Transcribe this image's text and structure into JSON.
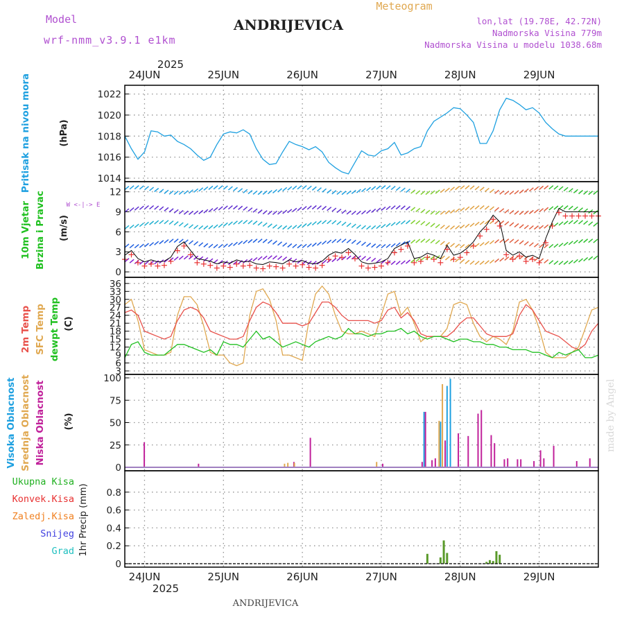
{
  "header": {
    "model_label": "Model",
    "model_name": "wrf-nmm_v3.9.1 e1km",
    "title": "ANDRIJEVICA",
    "subtitle": "Meteogram",
    "lonlat": "lon,lat (19.78E, 42.72N)",
    "altitude": "Nadmorska Visina 779m",
    "model_altitude": "Nadmorska Visina u modelu 1038.68m",
    "year": "2025",
    "footer_title": "ANDRIJEVICA",
    "credit": "made by Angel"
  },
  "colors": {
    "pressure": "#1ea0e0",
    "temp2m": "#e8504a",
    "sfctemp": "#e0a850",
    "dewpoint": "#20c020",
    "high_cloud": "#1ea0e0",
    "mid_cloud": "#e0a850",
    "low_cloud": "#c0209a",
    "total_precip": "#20b020",
    "conv_precip": "#e83030",
    "frz_precip": "#f08020",
    "snow": "#4040e0",
    "hail": "#20c0c0",
    "grid": "#909090"
  },
  "chart_data": [
    {
      "type": "line",
      "panel": "pressure",
      "ylabel_colored": "Pritisak na nivou mora",
      "unit": "(hPa)",
      "ylim": [
        1014,
        1022.5
      ],
      "yticks": [
        1014,
        1016,
        1018,
        1020,
        1022
      ],
      "xlim": [
        0,
        144
      ],
      "xticks": [
        {
          "t": 6,
          "label": "24JUN"
        },
        {
          "t": 30,
          "label": "25JUN"
        },
        {
          "t": 54,
          "label": "26JUN"
        },
        {
          "t": 78,
          "label": "27JUN"
        },
        {
          "t": 102,
          "label": "28JUN"
        },
        {
          "t": 126,
          "label": "29JUN"
        }
      ],
      "grid": true,
      "series": [
        {
          "key": "pressure",
          "t": [
            0,
            2,
            4,
            6,
            8,
            10,
            12,
            14,
            16,
            18,
            20,
            22,
            24,
            26,
            28,
            30,
            32,
            34,
            36,
            38,
            40,
            42,
            44,
            46,
            48,
            50,
            52,
            54,
            56,
            58,
            60,
            62,
            64,
            66,
            68,
            70,
            72,
            74,
            76,
            78,
            80,
            82,
            84,
            86,
            88,
            90,
            92,
            94,
            96,
            98,
            100,
            102,
            104,
            106,
            108,
            110,
            112,
            114,
            116,
            118,
            120,
            122,
            124,
            126,
            128,
            130,
            132,
            134,
            136,
            138,
            140,
            142,
            144
          ],
          "values": [
            1018.0,
            1016.8,
            1015.8,
            1016.5,
            1018.5,
            1018.4,
            1018.0,
            1018.1,
            1017.5,
            1017.2,
            1016.8,
            1016.2,
            1015.7,
            1016.0,
            1017.2,
            1018.2,
            1018.4,
            1018.3,
            1018.6,
            1018.2,
            1016.8,
            1015.8,
            1015.3,
            1015.4,
            1016.5,
            1017.5,
            1017.2,
            1017.0,
            1016.7,
            1017.0,
            1016.5,
            1015.5,
            1015.0,
            1014.6,
            1014.4,
            1015.5,
            1016.6,
            1016.2,
            1016.1,
            1016.6,
            1016.8,
            1017.4,
            1016.2,
            1016.4,
            1016.8,
            1017.0,
            1018.5,
            1019.4,
            1019.8,
            1020.2,
            1020.7,
            1020.6,
            1020.0,
            1019.3,
            1017.3,
            1017.3,
            1018.5,
            1020.5,
            1021.6,
            1021.4,
            1021.0,
            1020.5,
            1020.7,
            1020.2,
            1019.3,
            1018.7,
            1018.2,
            1018.0,
            1018.0,
            1018.0,
            1018.0,
            1018.0,
            1018.0
          ]
        }
      ]
    },
    {
      "type": "line",
      "panel": "wind",
      "ylabel_colored": [
        "10m Vjetar",
        "Brzina i Pravac"
      ],
      "unit": "(m/s)",
      "compass": "W <-|-> E",
      "ylim": [
        -0.3,
        13
      ],
      "yticks": [
        0,
        3,
        6,
        9,
        12
      ],
      "xlim": [
        0,
        144
      ],
      "grid": true,
      "series": [
        {
          "key": "wind_speed",
          "t": [
            0,
            2,
            4,
            6,
            8,
            10,
            12,
            14,
            16,
            18,
            20,
            22,
            24,
            26,
            28,
            30,
            32,
            34,
            36,
            38,
            40,
            42,
            44,
            46,
            48,
            50,
            52,
            54,
            56,
            58,
            60,
            62,
            64,
            66,
            68,
            70,
            72,
            74,
            76,
            78,
            80,
            82,
            84,
            86,
            88,
            90,
            92,
            94,
            96,
            98,
            100,
            102,
            104,
            106,
            108,
            110,
            112,
            114,
            116,
            118,
            120,
            122,
            124,
            126,
            128,
            130,
            132,
            134,
            136,
            138,
            140,
            142,
            144
          ],
          "values": [
            2.5,
            3.2,
            2.0,
            1.5,
            1.8,
            1.5,
            1.6,
            2.2,
            3.8,
            4.5,
            3.2,
            2.0,
            1.8,
            1.6,
            1.2,
            1.5,
            1.3,
            1.8,
            1.5,
            1.6,
            1.2,
            1.1,
            1.5,
            1.4,
            1.2,
            1.8,
            1.5,
            1.7,
            1.3,
            1.2,
            1.6,
            2.5,
            3.0,
            2.8,
            3.5,
            2.6,
            1.5,
            1.2,
            1.3,
            1.5,
            2.0,
            3.5,
            4.0,
            4.5,
            2.0,
            2.2,
            2.8,
            2.5,
            2.0,
            4.0,
            2.5,
            2.8,
            3.5,
            4.5,
            6.0,
            7.0,
            8.5,
            7.5,
            3.2,
            2.5,
            3.0,
            2.2,
            2.5,
            2.0,
            5.0,
            7.5,
            9.5,
            9.0,
            9.0,
            9.0,
            9.0,
            9.0,
            9.0
          ]
        }
      ],
      "wind_bands": [
        1.5,
        4.0,
        6.8,
        9.0,
        12.0
      ]
    },
    {
      "type": "line",
      "panel": "temperature",
      "ylabels_colored": [
        "2m Temp",
        "SFC Temp",
        "dewpt Temp"
      ],
      "unit": "(C)",
      "ylim": [
        3,
        37
      ],
      "yticks": [
        3,
        6,
        9,
        12,
        15,
        18,
        21,
        24,
        27,
        30,
        33,
        36
      ],
      "xlim": [
        0,
        144
      ],
      "grid": true,
      "series": [
        {
          "key": "sfctemp",
          "t": [
            0,
            2,
            4,
            6,
            8,
            10,
            12,
            14,
            16,
            18,
            20,
            22,
            24,
            26,
            28,
            30,
            32,
            34,
            36,
            38,
            40,
            42,
            44,
            46,
            48,
            50,
            52,
            54,
            56,
            58,
            60,
            62,
            64,
            66,
            68,
            70,
            72,
            74,
            76,
            78,
            80,
            82,
            84,
            86,
            88,
            90,
            92,
            94,
            96,
            98,
            100,
            102,
            104,
            106,
            108,
            110,
            112,
            114,
            116,
            118,
            120,
            122,
            124,
            126,
            128,
            130,
            132,
            134,
            136,
            138,
            140,
            142,
            144
          ],
          "values": [
            28,
            30,
            22,
            11,
            10,
            9,
            9,
            10,
            24,
            31,
            31,
            28,
            20,
            10,
            9,
            9,
            6,
            5,
            6,
            24,
            33,
            34,
            30,
            22,
            9,
            9,
            8,
            7,
            22,
            32,
            35,
            32,
            24,
            18,
            17,
            17,
            18,
            17,
            16,
            24,
            32,
            33,
            24,
            27,
            21,
            14,
            16,
            16,
            16,
            19,
            28,
            29,
            28,
            21,
            16,
            14,
            16,
            15,
            13,
            18,
            29,
            30,
            26,
            19,
            10,
            8,
            8,
            8,
            10,
            12,
            19,
            26,
            27
          ]
        },
        {
          "key": "temp2m",
          "t": [
            0,
            2,
            4,
            6,
            8,
            10,
            12,
            14,
            16,
            18,
            20,
            22,
            24,
            26,
            28,
            30,
            32,
            34,
            36,
            38,
            40,
            42,
            44,
            46,
            48,
            50,
            52,
            54,
            56,
            58,
            60,
            62,
            64,
            66,
            68,
            70,
            72,
            74,
            76,
            78,
            80,
            82,
            84,
            86,
            88,
            90,
            92,
            94,
            96,
            98,
            100,
            102,
            104,
            106,
            108,
            110,
            112,
            114,
            116,
            118,
            120,
            122,
            124,
            126,
            128,
            130,
            132,
            134,
            136,
            138,
            140,
            142,
            144
          ],
          "values": [
            25,
            26,
            24,
            18,
            17,
            16,
            15,
            16,
            22,
            26,
            27,
            26,
            23,
            18,
            17,
            16,
            15,
            15,
            16,
            22,
            27,
            29,
            28,
            25,
            21,
            21,
            21,
            20,
            21,
            25,
            29,
            29,
            27,
            24,
            22,
            22,
            22,
            22,
            21,
            22,
            26,
            27,
            23,
            25,
            22,
            17,
            16,
            16,
            16,
            16,
            18,
            21,
            23,
            23,
            20,
            17,
            16,
            16,
            16,
            17,
            24,
            28,
            26,
            22,
            18,
            17,
            16,
            14,
            12,
            11,
            13,
            18,
            21
          ]
        },
        {
          "key": "dewpoint",
          "t": [
            0,
            2,
            4,
            6,
            8,
            10,
            12,
            14,
            16,
            18,
            20,
            22,
            24,
            26,
            28,
            30,
            32,
            34,
            36,
            38,
            40,
            42,
            44,
            46,
            48,
            50,
            52,
            54,
            56,
            58,
            60,
            62,
            64,
            66,
            68,
            70,
            72,
            74,
            76,
            78,
            80,
            82,
            84,
            86,
            88,
            90,
            92,
            94,
            96,
            98,
            100,
            102,
            104,
            106,
            108,
            110,
            112,
            114,
            116,
            118,
            120,
            122,
            124,
            126,
            128,
            130,
            132,
            134,
            136,
            138,
            140,
            142,
            144
          ],
          "values": [
            8,
            13,
            14,
            10,
            9,
            9,
            9,
            11,
            13,
            13,
            12,
            11,
            10,
            11,
            9,
            14,
            13,
            13,
            12,
            15,
            18,
            15,
            16,
            14,
            12,
            13,
            14,
            13,
            12,
            14,
            15,
            16,
            15,
            16,
            19,
            17,
            17,
            16,
            17,
            17,
            18,
            18,
            19,
            17,
            18,
            16,
            15,
            16,
            16,
            15,
            14,
            15,
            15,
            14,
            14,
            13,
            13,
            12,
            12,
            11,
            11,
            11,
            10,
            10,
            9,
            8,
            10,
            9,
            10,
            11,
            8,
            8,
            9
          ]
        }
      ]
    },
    {
      "type": "bar",
      "panel": "clouds",
      "ylabels_colored": [
        "Visoka Oblacnost",
        "Srednja Oblacnost",
        "Niska Oblacnost"
      ],
      "unit": "(%)",
      "ylim": [
        0,
        100
      ],
      "yticks": [
        0,
        25,
        50,
        75,
        100
      ],
      "xlim": [
        0,
        144
      ],
      "grid": true,
      "bars": [
        {
          "t": 5.5,
          "low": 28
        },
        {
          "t": 22,
          "low": 4
        },
        {
          "t": 49,
          "mid": 4
        },
        {
          "t": 50,
          "mid": 5
        },
        {
          "t": 51,
          "low": 6
        },
        {
          "t": 52,
          "mid": 5
        },
        {
          "t": 56,
          "low": 33
        },
        {
          "t": 77,
          "mid": 6
        },
        {
          "t": 78,
          "low": 4
        },
        {
          "t": 90,
          "low": 6
        },
        {
          "t": 91,
          "low": 62,
          "high": 62
        },
        {
          "t": 93,
          "low": 8
        },
        {
          "t": 94,
          "low": 10
        },
        {
          "t": 96,
          "high": 51,
          "mid": 52
        },
        {
          "t": 97,
          "mid": 93,
          "low": 30
        },
        {
          "t": 98,
          "high": 91
        },
        {
          "t": 99,
          "high": 99
        },
        {
          "t": 101,
          "low": 38
        },
        {
          "t": 104,
          "low": 35
        },
        {
          "t": 107,
          "low": 60
        },
        {
          "t": 108,
          "low": 64
        },
        {
          "t": 111,
          "low": 36
        },
        {
          "t": 112,
          "low": 27
        },
        {
          "t": 115,
          "low": 9
        },
        {
          "t": 116,
          "low": 10
        },
        {
          "t": 119,
          "low": 9
        },
        {
          "t": 120,
          "low": 9
        },
        {
          "t": 124,
          "low": 7
        },
        {
          "t": 126,
          "low": 19
        },
        {
          "t": 127,
          "low": 10
        },
        {
          "t": 130,
          "low": 24
        },
        {
          "t": 137,
          "low": 7
        },
        {
          "t": 141,
          "low": 10
        }
      ]
    },
    {
      "type": "bar",
      "panel": "precip",
      "ylabels_colored": [
        "Ukupna Kisa",
        "Konvek.Kisa",
        "Zaledj.Kisa",
        "Snijeg",
        "Grad"
      ],
      "ylabel_black": "1hr Precip (mm)",
      "ylim": [
        0,
        1.0
      ],
      "yticks": [
        0,
        0.2,
        0.4,
        0.6,
        0.8
      ],
      "xlim": [
        0,
        144
      ],
      "grid": true,
      "bars": [
        {
          "t": 92,
          "total": 0.11
        },
        {
          "t": 96,
          "total": 0.07
        },
        {
          "t": 97,
          "total": 0.26
        },
        {
          "t": 98,
          "total": 0.12
        },
        {
          "t": 110,
          "total": 0.02
        },
        {
          "t": 111,
          "total": 0.04
        },
        {
          "t": 112,
          "total": 0.03
        },
        {
          "t": 113,
          "total": 0.14
        },
        {
          "t": 114,
          "total": 0.1
        }
      ]
    }
  ]
}
